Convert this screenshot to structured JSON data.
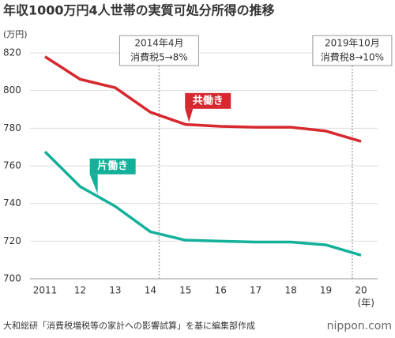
{
  "chart_data": {
    "type": "line",
    "title": "年収1000万円4人世帯の実質可処分所得の推移",
    "y_label": "(万円)",
    "x_label": "(年)",
    "x": [
      2011,
      2012,
      2013,
      2014,
      2015,
      2016,
      2017,
      2018,
      2019,
      2020
    ],
    "xlim": [
      2011,
      2020
    ],
    "xticks": [
      {
        "value": 2011,
        "label": "2011"
      },
      {
        "value": 2012,
        "label": "12"
      },
      {
        "value": 2013,
        "label": "13"
      },
      {
        "value": 2014,
        "label": "14"
      },
      {
        "value": 2015,
        "label": "15"
      },
      {
        "value": 2016,
        "label": "16"
      },
      {
        "value": 2017,
        "label": "17"
      },
      {
        "value": 2018,
        "label": "18"
      },
      {
        "value": 2019,
        "label": "19"
      },
      {
        "value": 2020,
        "label": "20"
      }
    ],
    "ylim": [
      700,
      820
    ],
    "yticks": [
      700,
      720,
      740,
      760,
      780,
      800,
      820
    ],
    "grid": true,
    "series": [
      {
        "name": "共働き",
        "color": "#d7282f",
        "values": [
          818,
          806,
          801.5,
          788.5,
          782,
          781,
          780.5,
          780.5,
          778.5,
          773
        ]
      },
      {
        "name": "片働き",
        "color": "#13b09a",
        "values": [
          767.5,
          749,
          738.5,
          725,
          720.5,
          720,
          719.5,
          719.5,
          718,
          712.5
        ]
      }
    ],
    "annotations": [
      {
        "x": 2014.25,
        "lines": [
          "2014年4月",
          "消費税5→8%"
        ]
      },
      {
        "x": 2019.75,
        "lines": [
          "2019年10月",
          "消費税8→10%"
        ]
      }
    ],
    "source": "大和総研「消費税増税等の家計への影響試算」を基に編集部作成",
    "logo": "nippon.com"
  }
}
